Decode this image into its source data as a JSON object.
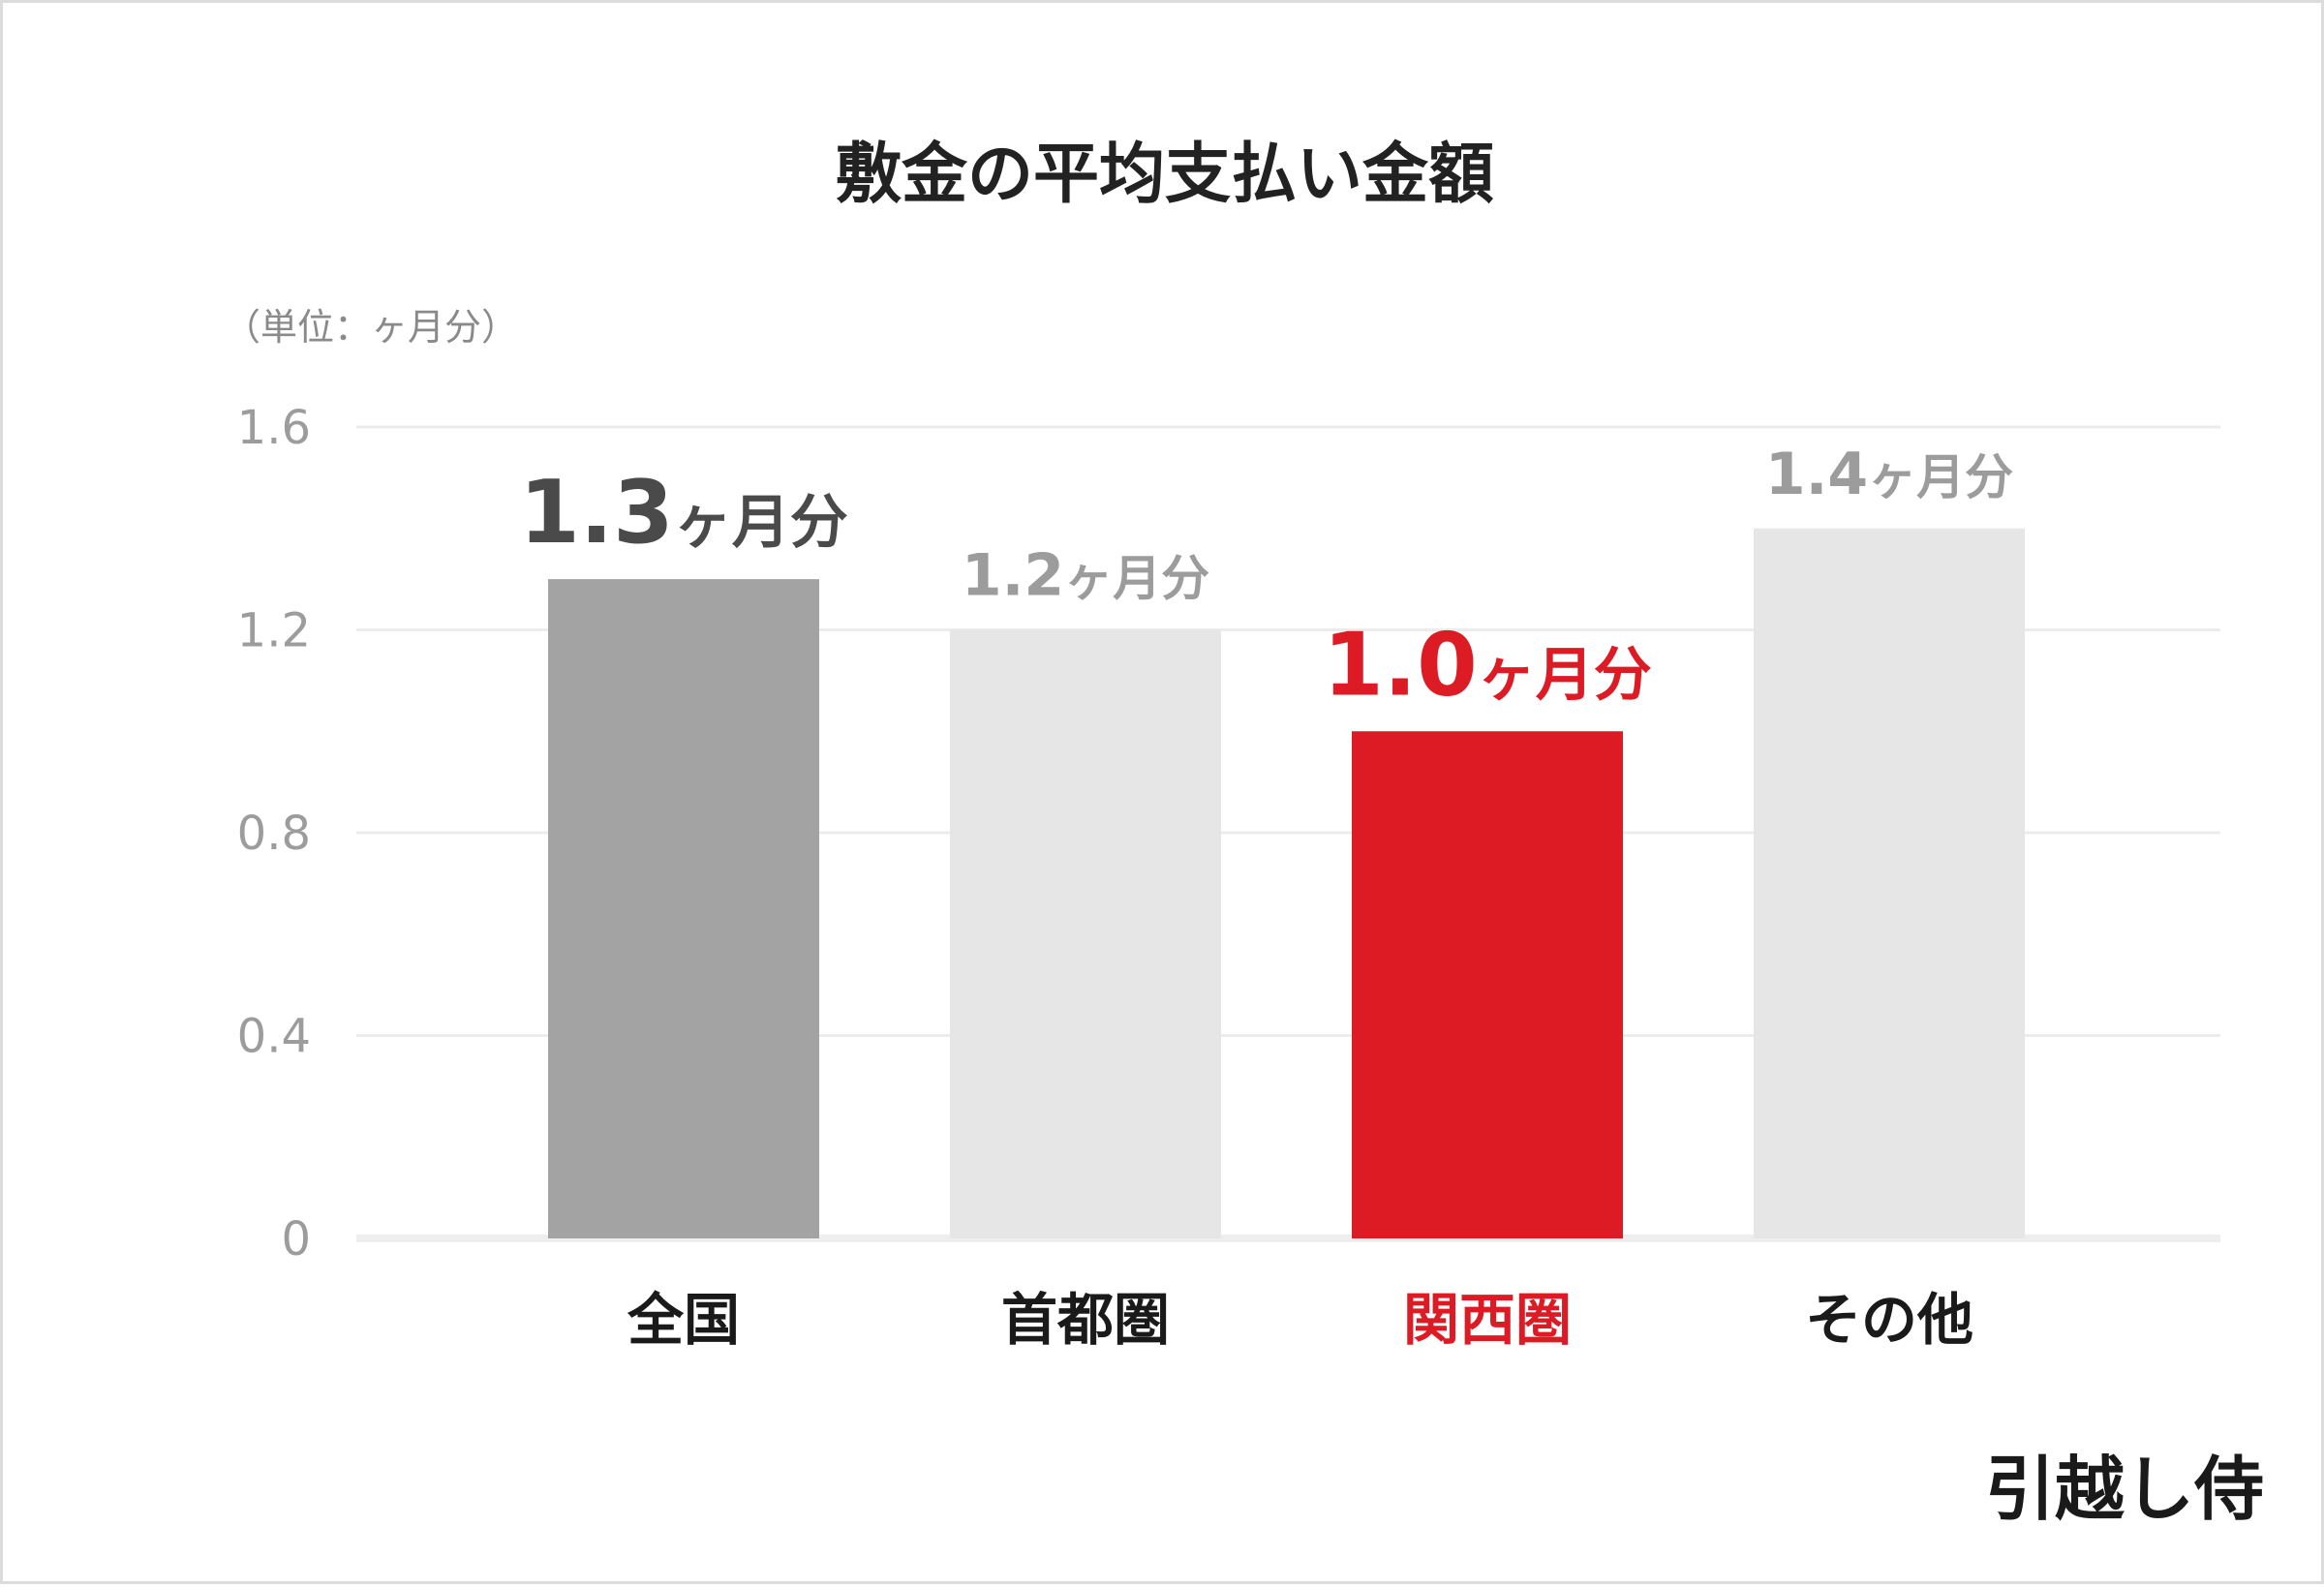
{
  "chart_data": {
    "type": "bar",
    "title": "敷金の平均支払い金額",
    "unit_note": "（単位：ヶ月分）",
    "categories": [
      "全国",
      "首都圏",
      "関西圏",
      "その他"
    ],
    "values": [
      1.3,
      1.2,
      1.0,
      1.4
    ],
    "value_labels": [
      {
        "number": "1.3",
        "suffix": "ヶ月分"
      },
      {
        "number": "1.2",
        "suffix": "ヶ月分"
      },
      {
        "number": "1.0",
        "suffix": "ヶ月分"
      },
      {
        "number": "1.4",
        "suffix": "ヶ月分"
      }
    ],
    "ylim": [
      0,
      1.6
    ],
    "yticks": [
      "0",
      "0.4",
      "0.8",
      "1.2",
      "1.6"
    ],
    "ytick_values": [
      0,
      0.4,
      0.8,
      1.2,
      1.6
    ],
    "grid": true,
    "legend": "none",
    "colors": {
      "bars": [
        "#a3a3a3",
        "#e6e6e6",
        "#dc1b24",
        "#e6e6e6"
      ],
      "value_labels": [
        "#4a4a4a",
        "#9c9c9c",
        "#dc1b24",
        "#9c9c9c"
      ],
      "category_labels": [
        "#1a1a1a",
        "#1a1a1a",
        "#dc1b24",
        "#1a1a1a"
      ],
      "value_label_emphasis": [
        "strong",
        "normal",
        "strong",
        "normal"
      ]
    }
  },
  "branding": {
    "logo_text": "引越し侍"
  }
}
